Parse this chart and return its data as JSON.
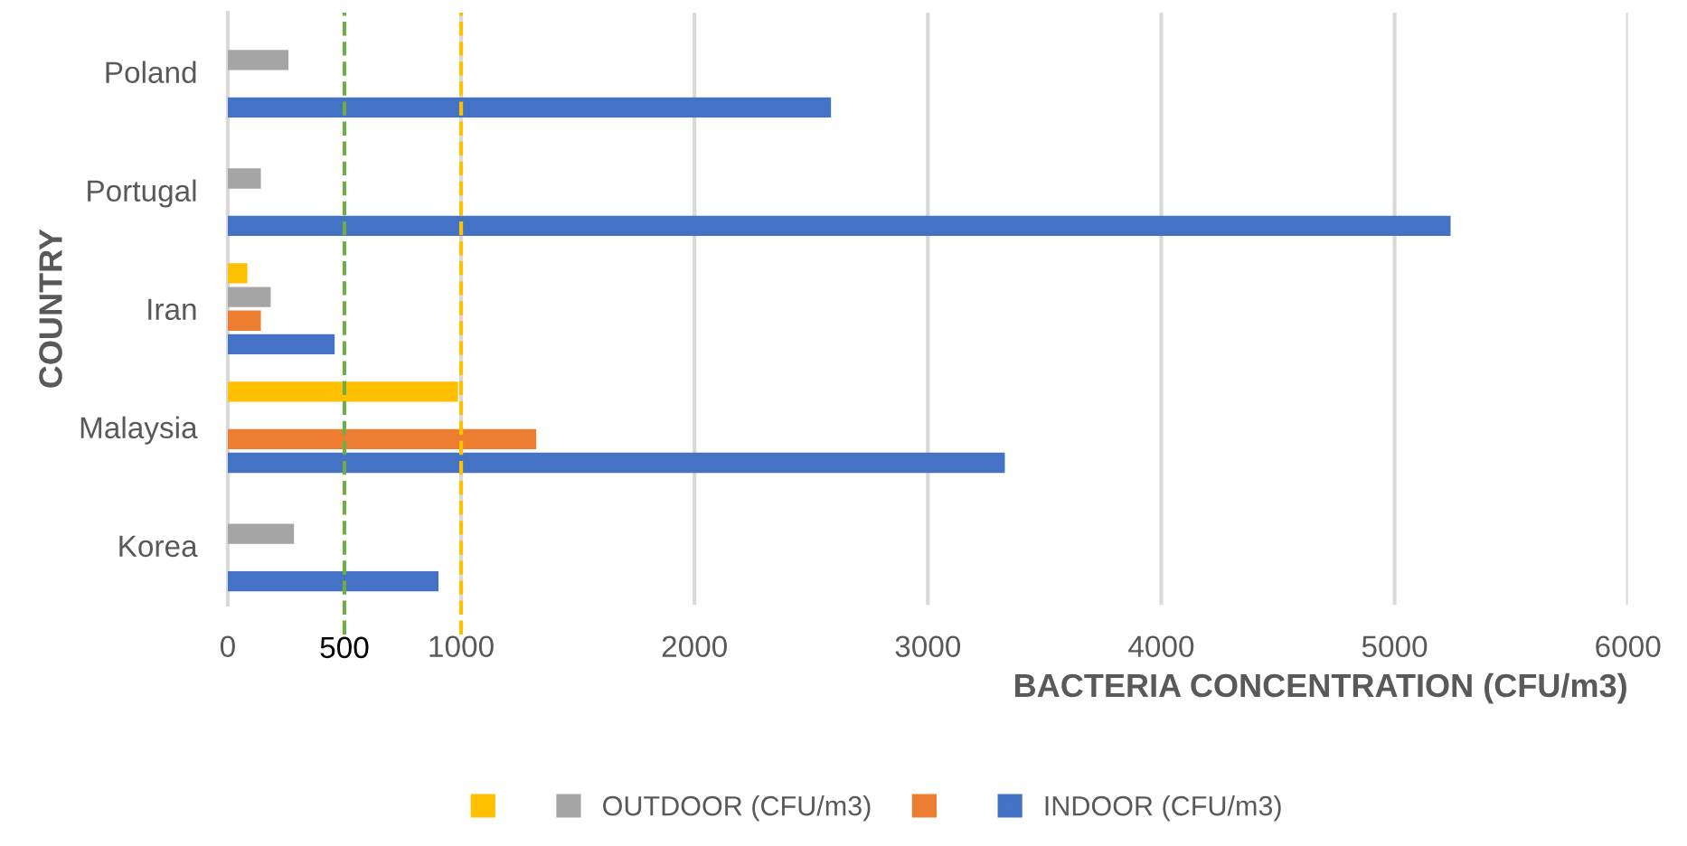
{
  "chart_data": {
    "type": "bar",
    "orientation": "horizontal",
    "xlabel": "BACTERIA CONCENTRATION (CFU/m3)",
    "ylabel": "COUNTRY",
    "categories": [
      "Poland",
      "Portugal",
      "Iran",
      "Malaysia",
      "Korea"
    ],
    "series": [
      {
        "color": "#ffc000",
        "values": [
          null,
          null,
          84,
          987,
          null
        ]
      },
      {
        "name": "OUTDOOR (CFU/m3)",
        "color": "#a5a5a5",
        "values": [
          260,
          142,
          184,
          null,
          284
        ]
      },
      {
        "color": "#ed7d31",
        "values": [
          null,
          null,
          142,
          1322,
          null
        ]
      },
      {
        "name": "INDOOR (CFU/m3)",
        "color": "#4472c4",
        "values": [
          2585,
          5240,
          458,
          3330,
          903
        ]
      }
    ],
    "xlim": [
      0,
      6000
    ],
    "xticks": [
      0,
      1000,
      2000,
      3000,
      4000,
      5000,
      6000
    ],
    "grid": "x",
    "legend": "bottom",
    "ref_lines": [
      {
        "axis": "x",
        "value": 500,
        "label": "500",
        "color": "#70ad47",
        "line_style": "dashed"
      },
      {
        "axis": "x",
        "value": 1000,
        "color": "#ffc000",
        "line_style": "dashed"
      }
    ]
  }
}
